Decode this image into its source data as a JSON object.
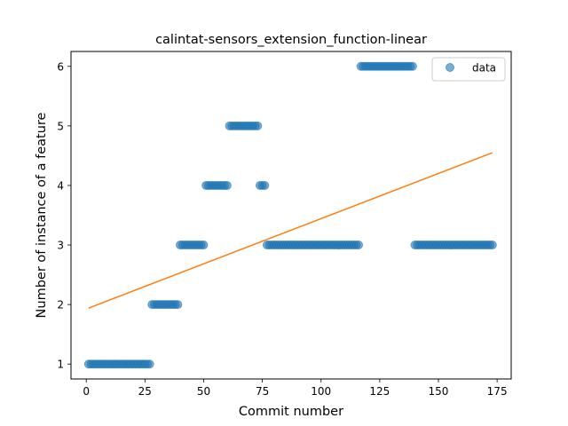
{
  "chart_data": {
    "type": "scatter",
    "title": "calintat-sensors_extension_function-linear",
    "xlabel": "Commit number",
    "ylabel": "Number of instance of a feature",
    "xlim": [
      -6.5,
      181
    ],
    "ylim": [
      0.75,
      6.25
    ],
    "xticks": [
      0,
      25,
      50,
      75,
      100,
      125,
      150,
      175
    ],
    "yticks": [
      1,
      2,
      3,
      4,
      5,
      6
    ],
    "legend_position": "upper right",
    "series": [
      {
        "name": "data",
        "kind": "scatter",
        "color": "#1f77b4",
        "alpha": 0.6,
        "segments": [
          {
            "x_start": 1,
            "x_end": 28,
            "y": 1
          },
          {
            "x_start": 28,
            "x_end": 40,
            "y": 2
          },
          {
            "x_start": 40,
            "x_end": 51,
            "y": 3
          },
          {
            "x_start": 51,
            "x_end": 61,
            "y": 4
          },
          {
            "x_start": 61,
            "x_end": 74,
            "y": 5
          },
          {
            "x_start": 74,
            "x_end": 77,
            "y": 4
          },
          {
            "x_start": 77,
            "x_end": 117,
            "y": 3
          },
          {
            "x_start": 117,
            "x_end": 140,
            "y": 6
          },
          {
            "x_start": 140,
            "x_end": 174,
            "y": 3
          }
        ]
      },
      {
        "kind": "line",
        "color": "#ff7f0e",
        "x": [
          1,
          173
        ],
        "y": [
          1.94,
          4.55
        ]
      }
    ]
  }
}
